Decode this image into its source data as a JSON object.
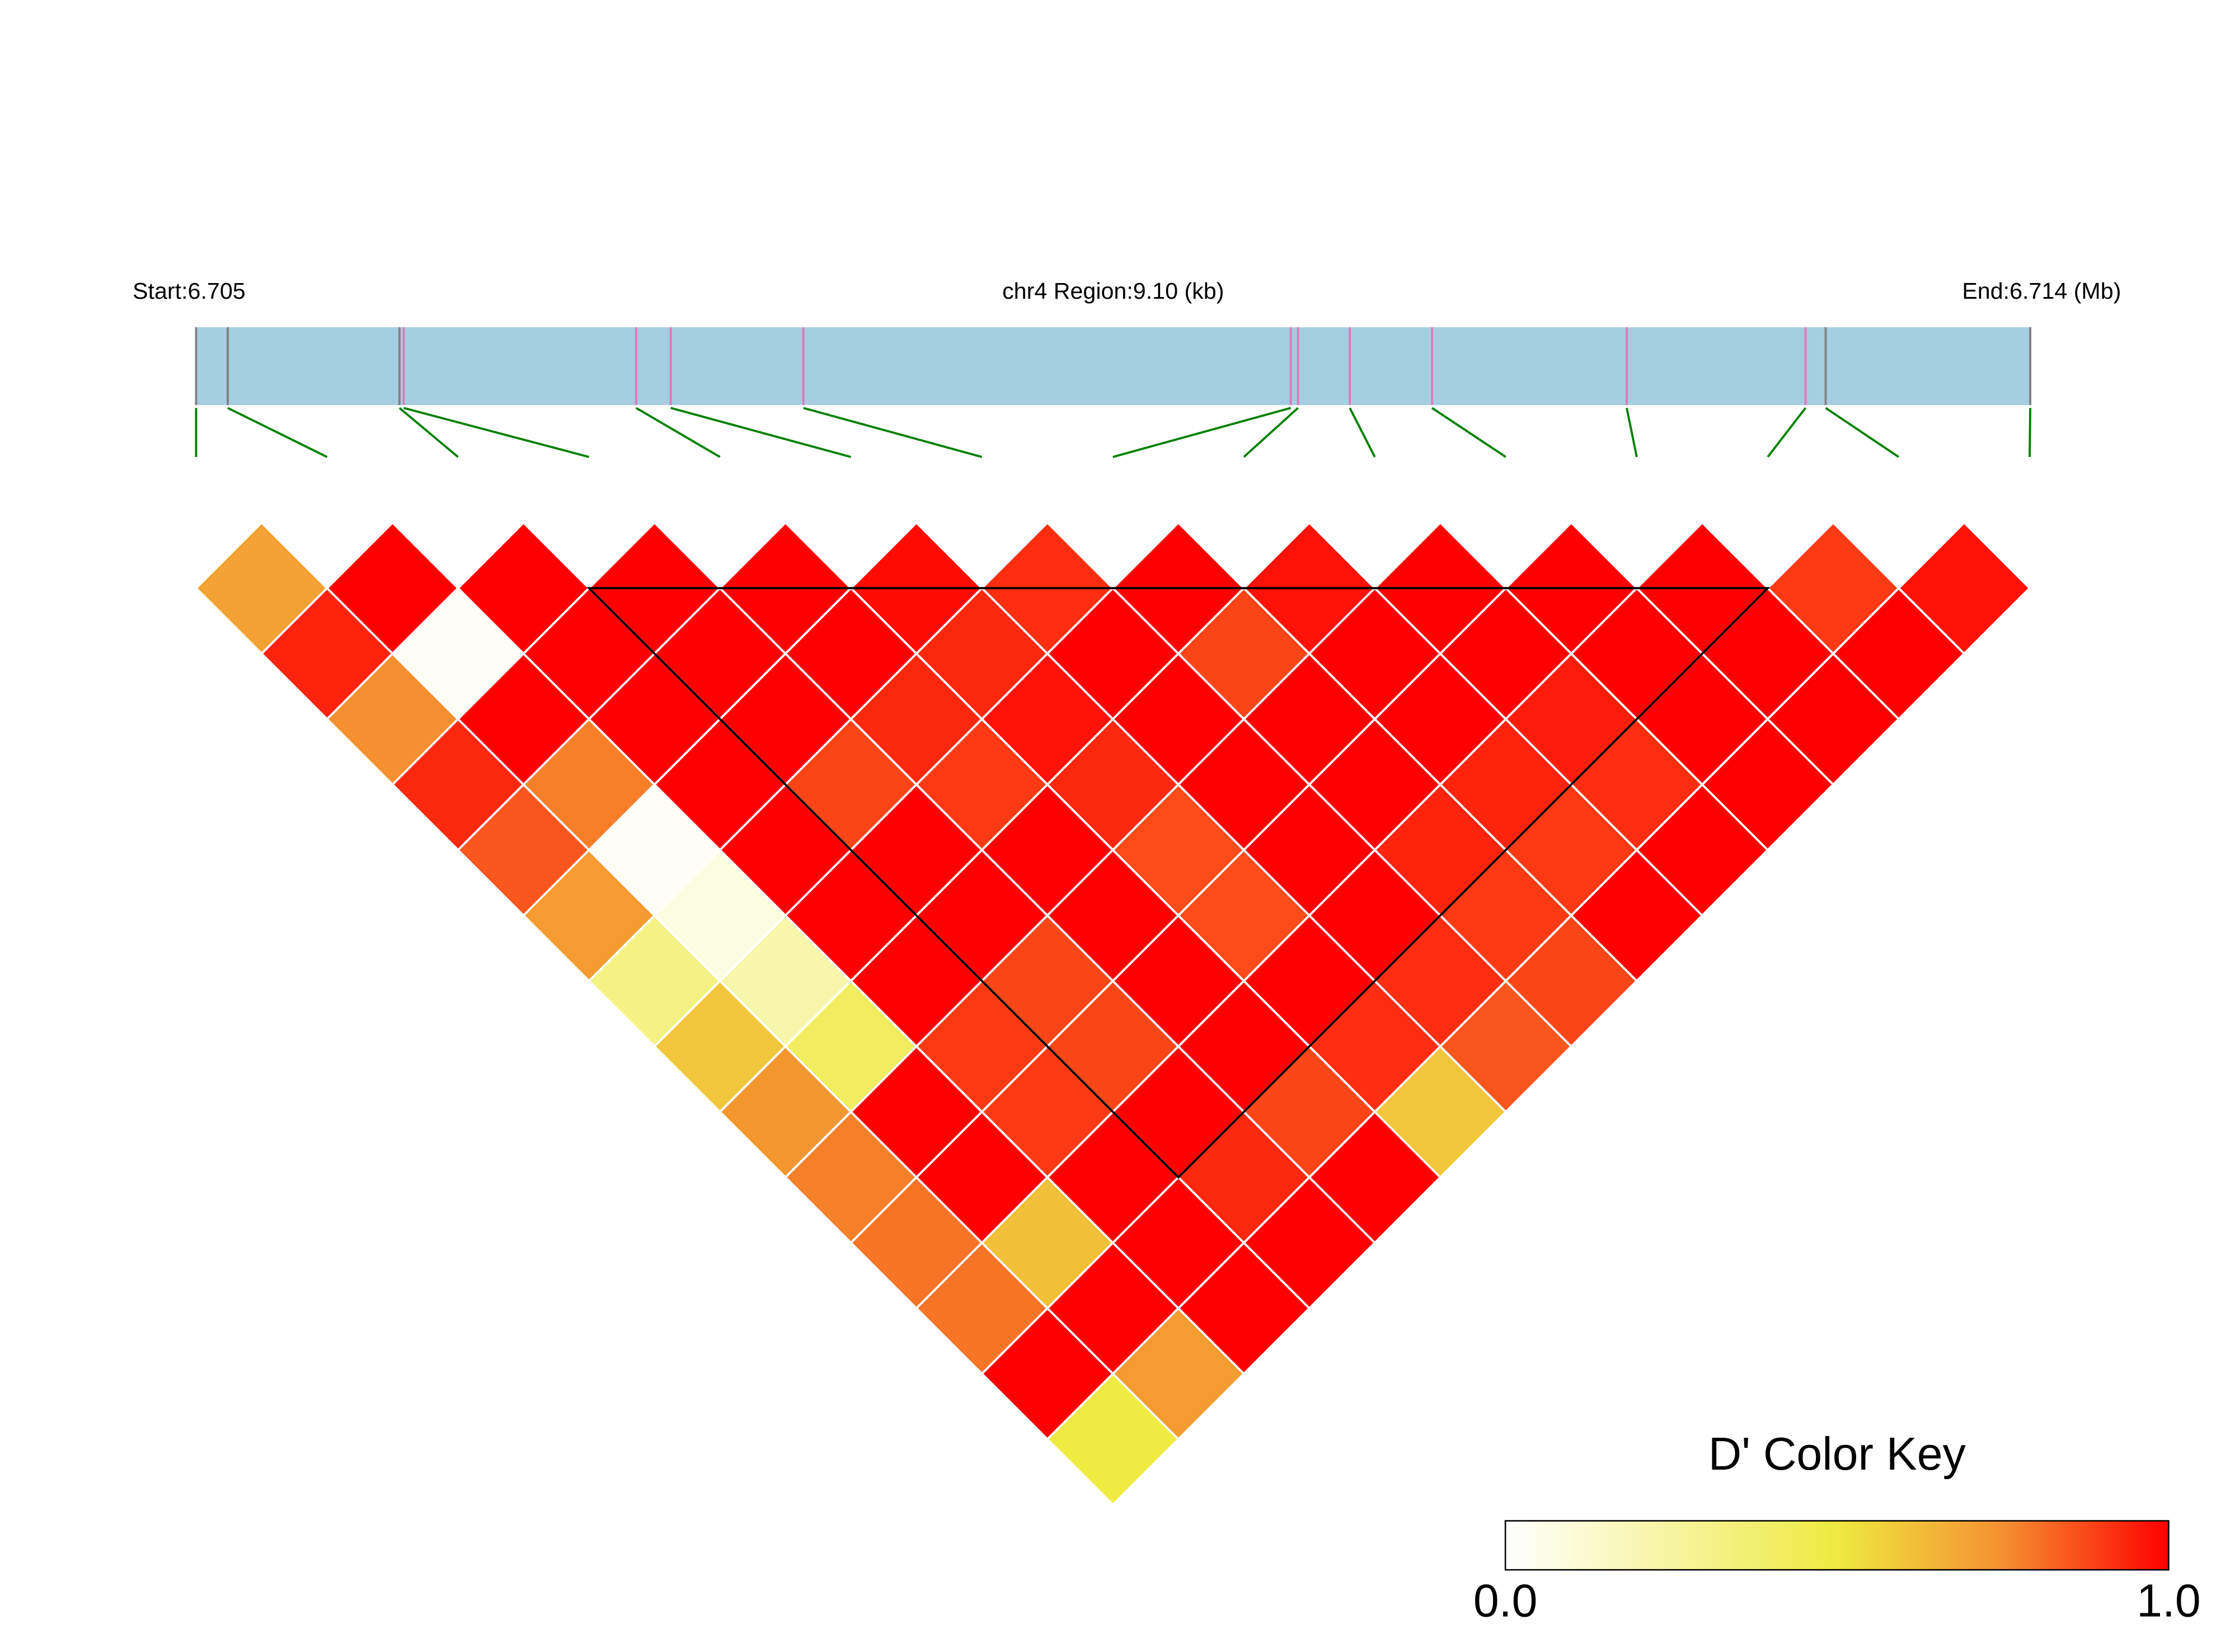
{
  "chart_data": {
    "type": "ld_heatmap",
    "start_label": "Start:6.705",
    "region_label": "chr4 Region:9.10 (kb)",
    "end_label": "End:6.714 (Mb)",
    "xlim": [
      0,
      9.1
    ],
    "snp_positions": [
      0,
      0.157,
      1.009,
      1.03,
      2.183,
      2.355,
      3.013,
      5.431,
      5.467,
      5.724,
      6.132,
      7.098,
      7.985,
      8.085,
      9.1
    ],
    "snp_colors": [
      "#808080",
      "#808080",
      "#808080",
      "#e07ab8",
      "#e07ab8",
      "#e07ab8",
      "#e07ab8",
      "#e07ab8",
      "#e07ab8",
      "#e07ab8",
      "#e07ab8",
      "#e07ab8",
      "#e07ab8",
      "#808080",
      "#808080"
    ],
    "bar_color": "#a6cee3",
    "connector_color": "#008000",
    "dprime": [
      [
        0.7,
        0.94,
        0.75,
        0.93,
        0.85,
        0.72,
        0.32,
        0.6,
        0.73,
        0.78,
        0.8,
        0.8,
        1,
        0.5
      ],
      [
        1,
        0.02,
        1,
        0.78,
        0.03,
        0.08,
        0.22,
        0.42,
        1,
        1,
        0.62,
        1,
        0.72
      ],
      [
        1,
        1,
        1,
        1,
        1,
        1,
        1,
        0.9,
        0.9,
        1,
        1,
        1
      ],
      [
        1,
        1,
        1,
        0.88,
        1,
        1,
        0.88,
        0.88,
        1,
        0.93,
        1
      ],
      [
        1,
        1,
        0.93,
        0.9,
        1,
        1,
        1,
        1,
        0.88,
        1
      ],
      [
        0.98,
        0.93,
        0.97,
        0.93,
        0.87,
        0.87,
        1,
        0.92,
        0.6
      ],
      [
        0.92,
        1,
        1,
        1,
        1,
        1,
        0.92,
        0.85
      ],
      [
        1,
        0.88,
        1,
        1,
        0.94,
        0.9,
        0.88
      ],
      [
        0.97,
        1,
        1,
        0.94,
        0.9,
        1
      ],
      [
        1,
        1,
        0.95,
        0.92,
        1
      ],
      [
        1,
        1,
        1,
        1
      ],
      [
        1,
        1,
        1
      ],
      [
        0.9,
        1
      ],
      [
        0.97
      ]
    ],
    "blocks": [
      {
        "first_snp": 4,
        "last_snp": 13
      }
    ],
    "colorscale": [
      [
        0,
        "#ffffff"
      ],
      [
        0.5,
        "#eeea40"
      ],
      [
        0.75,
        "#f59030"
      ],
      [
        1,
        "#ff0000"
      ]
    ],
    "color_key": {
      "title": "D' Color Key",
      "ticks": [
        {
          "value": 0,
          "label": "0.0"
        },
        {
          "value": 1,
          "label": "1.0"
        }
      ]
    }
  }
}
